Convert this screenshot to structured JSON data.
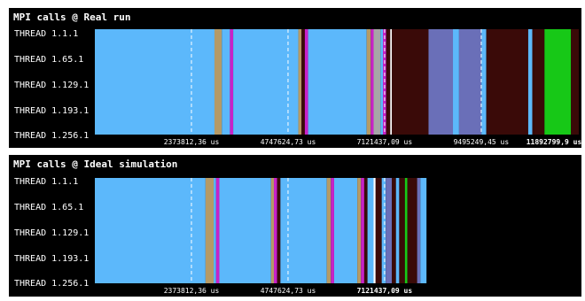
{
  "panels": [
    {
      "title": "MPI calls @ Real run",
      "threads": [
        "THREAD 1.1.1",
        "THREAD 1.65.1",
        "THREAD 1.129.1",
        "THREAD 1.193.1",
        "THREAD 1.256.1"
      ],
      "axis_labels": [
        "2373812,36 us",
        "4747624,73 us",
        "7121437,09 us",
        "9495249,45 us",
        "11892799,9 us"
      ],
      "axis_last_bold": true,
      "time_markers": [
        2373812.36,
        4747624.73,
        7121437.09,
        9495249.45
      ],
      "time_end": 11892799.9,
      "segments": [
        {
          "t0": 0,
          "t1": 2940000,
          "color": "#5cb8fb"
        },
        {
          "t0": 2940000,
          "t1": 3120000,
          "color": "#b59a66"
        },
        {
          "t0": 3120000,
          "t1": 3320000,
          "color": "#5cb8fb"
        },
        {
          "t0": 3320000,
          "t1": 3400000,
          "color": "#c822c8"
        },
        {
          "t0": 3400000,
          "t1": 5000000,
          "color": "#5cb8fb"
        },
        {
          "t0": 5000000,
          "t1": 5080000,
          "color": "#b59a66"
        },
        {
          "t0": 5080000,
          "t1": 5160000,
          "color": "#3a0a08"
        },
        {
          "t0": 5160000,
          "t1": 5240000,
          "color": "#c822c8"
        },
        {
          "t0": 5240000,
          "t1": 6680000,
          "color": "#5cb8fb"
        },
        {
          "t0": 6680000,
          "t1": 6780000,
          "color": "#b59a66"
        },
        {
          "t0": 6780000,
          "t1": 6850000,
          "color": "#c822c8"
        },
        {
          "t0": 6850000,
          "t1": 7020000,
          "color": "#a6a6a6"
        },
        {
          "t0": 7020000,
          "t1": 7080000,
          "color": "#5cb8fb"
        },
        {
          "t0": 7080000,
          "t1": 7160000,
          "color": "#c822c8"
        },
        {
          "t0": 7160000,
          "t1": 7260000,
          "color": "#3a0a08"
        },
        {
          "t0": 7260000,
          "t1": 7300000,
          "color": "#ffffff"
        },
        {
          "t0": 7300000,
          "t1": 8200000,
          "color": "#3a0a08"
        },
        {
          "t0": 8200000,
          "t1": 8800000,
          "color": "#6a6fb8"
        },
        {
          "t0": 8800000,
          "t1": 8950000,
          "color": "#5cb8fb"
        },
        {
          "t0": 8950000,
          "t1": 9500000,
          "color": "#6a6fb8"
        },
        {
          "t0": 9500000,
          "t1": 9620000,
          "color": "#5cb8fb"
        },
        {
          "t0": 9620000,
          "t1": 10650000,
          "color": "#3a0a08"
        },
        {
          "t0": 10650000,
          "t1": 10750000,
          "color": "#5cb8fb"
        },
        {
          "t0": 10750000,
          "t1": 10800000,
          "color": "#3a0a08"
        },
        {
          "t0": 10800000,
          "t1": 11050000,
          "color": "#3a0a08"
        },
        {
          "t0": 11050000,
          "t1": 11700000,
          "color": "#17c817"
        },
        {
          "t0": 11700000,
          "t1": 11892799.9,
          "color": "#3a0a08"
        }
      ]
    },
    {
      "title": "MPI calls @ Ideal simulation",
      "threads": [
        "THREAD 1.1.1",
        "THREAD 1.65.1",
        "THREAD 1.129.1",
        "THREAD 1.193.1",
        "THREAD 1.256.1"
      ],
      "axis_labels": [
        "2373812,36 us",
        "4747624,73 us",
        "7121437,09 us"
      ],
      "axis_last_bold": true,
      "time_markers": [
        2373812.36,
        4747624.73,
        7121437.09
      ],
      "time_end": 11892799.9,
      "data_end": 8150000,
      "segments": [
        {
          "t0": 0,
          "t1": 2720000,
          "color": "#5cb8fb"
        },
        {
          "t0": 2720000,
          "t1": 2920000,
          "color": "#b59a66"
        },
        {
          "t0": 2920000,
          "t1": 2980000,
          "color": "#5cb8fb"
        },
        {
          "t0": 2980000,
          "t1": 3060000,
          "color": "#c822c8"
        },
        {
          "t0": 3060000,
          "t1": 4330000,
          "color": "#5cb8fb"
        },
        {
          "t0": 4330000,
          "t1": 4400000,
          "color": "#b59a66"
        },
        {
          "t0": 4400000,
          "t1": 4480000,
          "color": "#c822c8"
        },
        {
          "t0": 4480000,
          "t1": 4560000,
          "color": "#3a0a08"
        },
        {
          "t0": 4560000,
          "t1": 5700000,
          "color": "#5cb8fb"
        },
        {
          "t0": 5700000,
          "t1": 5800000,
          "color": "#b59a66"
        },
        {
          "t0": 5800000,
          "t1": 5880000,
          "color": "#c822c8"
        },
        {
          "t0": 5880000,
          "t1": 6450000,
          "color": "#5cb8fb"
        },
        {
          "t0": 6450000,
          "t1": 6540000,
          "color": "#b59a66"
        },
        {
          "t0": 6540000,
          "t1": 6620000,
          "color": "#c822c8"
        },
        {
          "t0": 6620000,
          "t1": 6700000,
          "color": "#3a0a08"
        },
        {
          "t0": 6700000,
          "t1": 6850000,
          "color": "#5cb8fb"
        },
        {
          "t0": 6850000,
          "t1": 6900000,
          "color": "#ffffff"
        },
        {
          "t0": 6900000,
          "t1": 7050000,
          "color": "#3a0a08"
        },
        {
          "t0": 7050000,
          "t1": 7150000,
          "color": "#5cb8fb"
        },
        {
          "t0": 7150000,
          "t1": 7300000,
          "color": "#6a6fb8"
        },
        {
          "t0": 7300000,
          "t1": 7400000,
          "color": "#3a0a08"
        },
        {
          "t0": 7400000,
          "t1": 7480000,
          "color": "#5cb8fb"
        },
        {
          "t0": 7480000,
          "t1": 7620000,
          "color": "#3a0a08"
        },
        {
          "t0": 7620000,
          "t1": 7680000,
          "color": "#17c817"
        },
        {
          "t0": 7680000,
          "t1": 7920000,
          "color": "#3a0a08"
        },
        {
          "t0": 7920000,
          "t1": 8000000,
          "color": "#6a6fb8"
        },
        {
          "t0": 8000000,
          "t1": 8150000,
          "color": "#5cb8fb"
        }
      ]
    }
  ],
  "colors": {
    "background": "#000000",
    "marker": "#ffffff",
    "text": "#ffffff"
  }
}
